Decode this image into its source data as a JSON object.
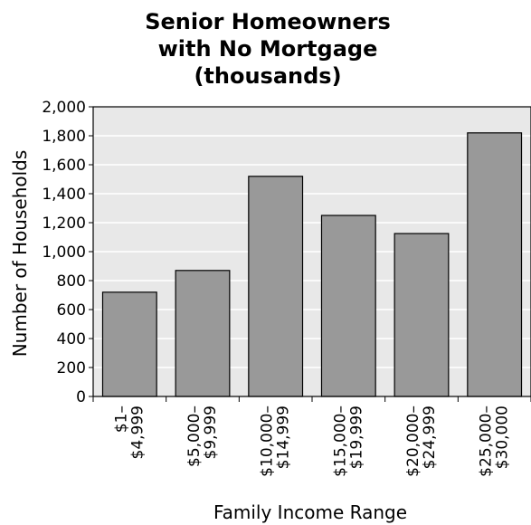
{
  "chart_data": {
    "type": "bar",
    "title_lines": [
      "Senior Homeowners",
      "with No Mortgage",
      "(thousands)"
    ],
    "xlabel": "Family Income Range",
    "ylabel": "Number of Households",
    "ylim": [
      0,
      2000
    ],
    "yticks": [
      "0",
      "200",
      "400",
      "600",
      "800",
      "1,000",
      "1,200",
      "1,400",
      "1,600",
      "1,800",
      "2,000"
    ],
    "ytick_values": [
      0,
      200,
      400,
      600,
      800,
      1000,
      1200,
      1400,
      1600,
      1800,
      2000
    ],
    "categories": [
      [
        "$1–",
        "$4,999"
      ],
      [
        "$5,000–",
        "$9,999"
      ],
      [
        "$10,000–",
        "$14,999"
      ],
      [
        "$15,000–",
        "$19,999"
      ],
      [
        "$20,000–",
        "$24,999"
      ],
      [
        "$25,000–",
        "$30,000"
      ]
    ],
    "values": [
      720,
      870,
      1520,
      1250,
      1125,
      1820
    ],
    "grid": true,
    "colors": {
      "bar_fill": "#999999",
      "bar_stroke": "#000000",
      "plot_background": "#e8e8e8",
      "gridline": "#ffffff"
    }
  }
}
